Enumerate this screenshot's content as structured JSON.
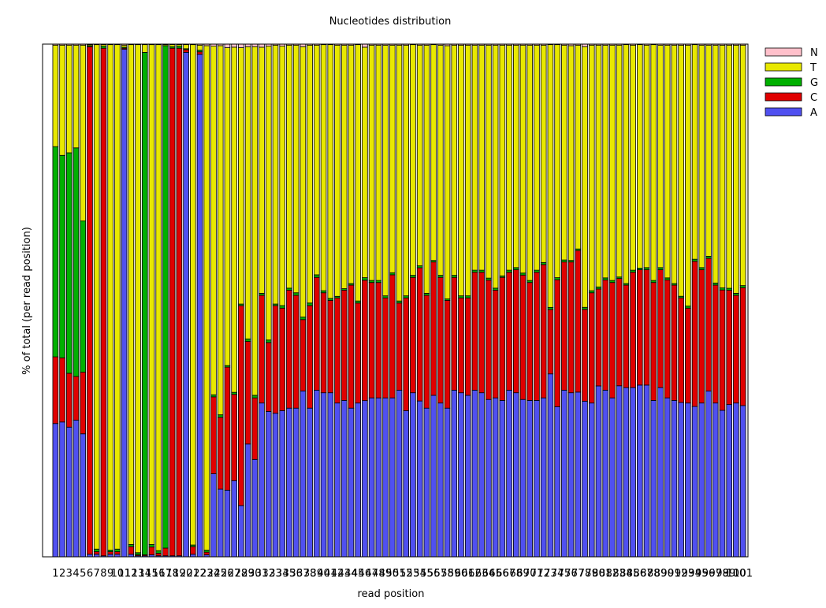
{
  "chart_data": {
    "type": "bar",
    "stacked": true,
    "title": "Nucleotides distribution",
    "xlabel": "read position",
    "ylabel": "% of total (per read position)",
    "ylim": [
      0,
      100
    ],
    "grid": false,
    "legend_position": "right",
    "categories": [
      "1",
      "2",
      "3",
      "4",
      "5",
      "6",
      "7",
      "8",
      "9",
      "10",
      "11",
      "12",
      "13",
      "14",
      "15",
      "16",
      "17",
      "18",
      "19",
      "20",
      "21",
      "22",
      "23",
      "24",
      "25",
      "26",
      "27",
      "28",
      "29",
      "30",
      "31",
      "32",
      "33",
      "34",
      "35",
      "36",
      "37",
      "38",
      "39",
      "40",
      "41",
      "42",
      "43",
      "44",
      "45",
      "46",
      "47",
      "48",
      "49",
      "50",
      "51",
      "52",
      "53",
      "54",
      "55",
      "56",
      "57",
      "58",
      "59",
      "60",
      "61",
      "62",
      "63",
      "64",
      "65",
      "66",
      "67",
      "68",
      "69",
      "70",
      "71",
      "72",
      "73",
      "74",
      "75",
      "76",
      "77",
      "78",
      "79",
      "80",
      "81",
      "82",
      "83",
      "84",
      "85",
      "86",
      "87",
      "88",
      "89",
      "90",
      "91",
      "92",
      "93",
      "94",
      "95",
      "96",
      "97",
      "98",
      "99",
      "100",
      "101"
    ],
    "series": [
      {
        "name": "A",
        "color": "#5050f0",
        "values": [
          26,
          26.3,
          25.3,
          26.6,
          24,
          0.5,
          0.5,
          0.2,
          0.5,
          0.5,
          99,
          0.5,
          0.2,
          0.2,
          0.4,
          0.2,
          0.2,
          0.2,
          0.2,
          98.5,
          0.5,
          98,
          0.4,
          16.2,
          13.2,
          13,
          15,
          10,
          22,
          19,
          30,
          28.5,
          28,
          28.5,
          29,
          29,
          32.5,
          29,
          32.5,
          32,
          32,
          30,
          30.5,
          29,
          30,
          30.5,
          31,
          31,
          31,
          31,
          32.5,
          28.5,
          32,
          31,
          29,
          31.5,
          30,
          29,
          32.5,
          32,
          31.5,
          32.5,
          32,
          31,
          31,
          30.5,
          32.5,
          32,
          31,
          30.5,
          30.5,
          31,
          35.5,
          29,
          32.5,
          32,
          32,
          30.5,
          30,
          33.5,
          32.5,
          31,
          33.5,
          33,
          33,
          33.5,
          33.5,
          30.5,
          33,
          31,
          30.5,
          29.5,
          30,
          29,
          30,
          32.5,
          30,
          28,
          30,
          30,
          29.5
        ]
      },
      {
        "name": "C",
        "color": "#e00000",
        "values": [
          13,
          12.5,
          10.5,
          8.5,
          12,
          99,
          0.5,
          99,
          0.5,
          0.5,
          0.2,
          1.5,
          0.2,
          0.2,
          1.5,
          0.5,
          1.5,
          99,
          99,
          0.5,
          1.5,
          0.5,
          0.5,
          15,
          14,
          24,
          17,
          39,
          20,
          12,
          21,
          13.5,
          21,
          20,
          23,
          22,
          14,
          20,
          22,
          19.5,
          18,
          20.5,
          21.5,
          24,
          19.5,
          23.5,
          22.5,
          22.5,
          19.5,
          24,
          17,
          22,
          22.5,
          26.5,
          22,
          26,
          24.5,
          21,
          22,
          18.5,
          19,
          23,
          23.5,
          23.5,
          21,
          24,
          23,
          24,
          24.5,
          23,
          25,
          26,
          12.5,
          24.5,
          25,
          25.5,
          27.5,
          18,
          21.5,
          19,
          21.5,
          22.5,
          21,
          20,
          22.5,
          22.5,
          22.5,
          23,
          23,
          23,
          22.5,
          20,
          18.5,
          28,
          26,
          26,
          23,
          23,
          22.5,
          21,
          23
        ]
      },
      {
        "name": "G",
        "color": "#00b000",
        "values": [
          41,
          39.5,
          43,
          44.5,
          29.5,
          0.2,
          0.5,
          0.4,
          0.3,
          0.5,
          0.2,
          0.4,
          0.4,
          98,
          0.5,
          0.5,
          98,
          0.3,
          0.4,
          0.2,
          0.3,
          0.3,
          0.4,
          0.4,
          0.5,
          0.3,
          0.4,
          0.3,
          0.5,
          0.5,
          0.4,
          0.5,
          0.3,
          0.5,
          0.4,
          0.5,
          0.5,
          0.5,
          0.5,
          0.4,
          0.4,
          0.3,
          0.3,
          0.3,
          0.4,
          0.5,
          0.4,
          0.4,
          0.4,
          0.4,
          0.4,
          0.4,
          0.4,
          0.4,
          0.4,
          0.3,
          0.4,
          0.3,
          0.4,
          0.4,
          0.4,
          0.4,
          0.4,
          0.4,
          0.4,
          0.3,
          0.4,
          0.4,
          0.4,
          0.4,
          0.4,
          0.4,
          0.4,
          0.4,
          0.4,
          0.3,
          0.3,
          0.4,
          0.4,
          0.4,
          0.4,
          0.4,
          0.3,
          0.3,
          0.4,
          0.3,
          0.4,
          0.4,
          0.4,
          0.4,
          0.3,
          0.3,
          0.4,
          0.4,
          0.4,
          0.4,
          0.4,
          0.4,
          0.4,
          0.4,
          0.4
        ]
      },
      {
        "name": "T",
        "color": "#e8e800",
        "values": [
          19.8,
          21.5,
          21,
          20,
          34.3,
          0.2,
          98.4,
          0.3,
          98.6,
          98.4,
          0.4,
          97.5,
          99.1,
          1.5,
          97.5,
          98.7,
          0.2,
          0.4,
          0.3,
          0.8,
          97.6,
          1,
          98.4,
          68,
          72,
          62,
          68,
          50,
          57,
          68,
          48,
          57.6,
          50.5,
          50.6,
          47.4,
          48.3,
          53,
          50.3,
          44.8,
          48,
          49.5,
          49,
          47.5,
          46.5,
          50,
          45,
          45.9,
          45.9,
          48.9,
          44.4,
          49.9,
          48.9,
          45,
          43.9,
          48.4,
          42.1,
          44.9,
          49.4,
          44.9,
          48.9,
          48.9,
          43.9,
          43.9,
          45.9,
          47.4,
          45,
          43.9,
          43.4,
          44.9,
          45.9,
          43.9,
          42.4,
          51,
          45,
          41.9,
          41.9,
          39.6,
          51.1,
          47.9,
          47.4,
          45.4,
          45.9,
          45.4,
          46.6,
          43.9,
          43.6,
          43.4,
          46,
          43.4,
          45.4,
          46.5,
          48,
          50.9,
          41.4,
          43.4,
          41.4,
          46.4,
          46.4,
          47.9,
          48.4,
          46.9
        ]
      },
      {
        "name": "N",
        "color": "#ffc0cb",
        "values": [
          0.2,
          0.2,
          0.2,
          0.2,
          0.2,
          0.1,
          0.1,
          0.1,
          0.1,
          0.1,
          0.2,
          0.1,
          0.1,
          0.1,
          0.1,
          0.1,
          0.1,
          0.1,
          0.1,
          0.1,
          0.1,
          0.2,
          0.3,
          0.4,
          0.3,
          0.7,
          0.6,
          0.7,
          0.5,
          0.5,
          0.6,
          0.4,
          0.2,
          0.4,
          0.2,
          0.2,
          0.5,
          0.2,
          0.2,
          0.1,
          0.1,
          0.2,
          0.2,
          0.2,
          0.1,
          0.6,
          0.2,
          0.2,
          0.2,
          0.2,
          0.2,
          0.2,
          0.1,
          0.2,
          0.2,
          0.1,
          0.2,
          0.3,
          0.2,
          0.2,
          0.2,
          0.2,
          0.2,
          0.2,
          0.2,
          0.2,
          0.2,
          0.2,
          0.2,
          0.2,
          0.2,
          0.2,
          0.1,
          0.1,
          0.2,
          0.3,
          0.2,
          0.5,
          0.2,
          0.2,
          0.2,
          0.2,
          0.2,
          0.1,
          0.2,
          0.1,
          0.2,
          0.1,
          0.2,
          0.2,
          0.2,
          0.2,
          0.2,
          0.1,
          0.2,
          0.2,
          0.2,
          0.2,
          0.2,
          0.2,
          0.2
        ]
      }
    ]
  }
}
